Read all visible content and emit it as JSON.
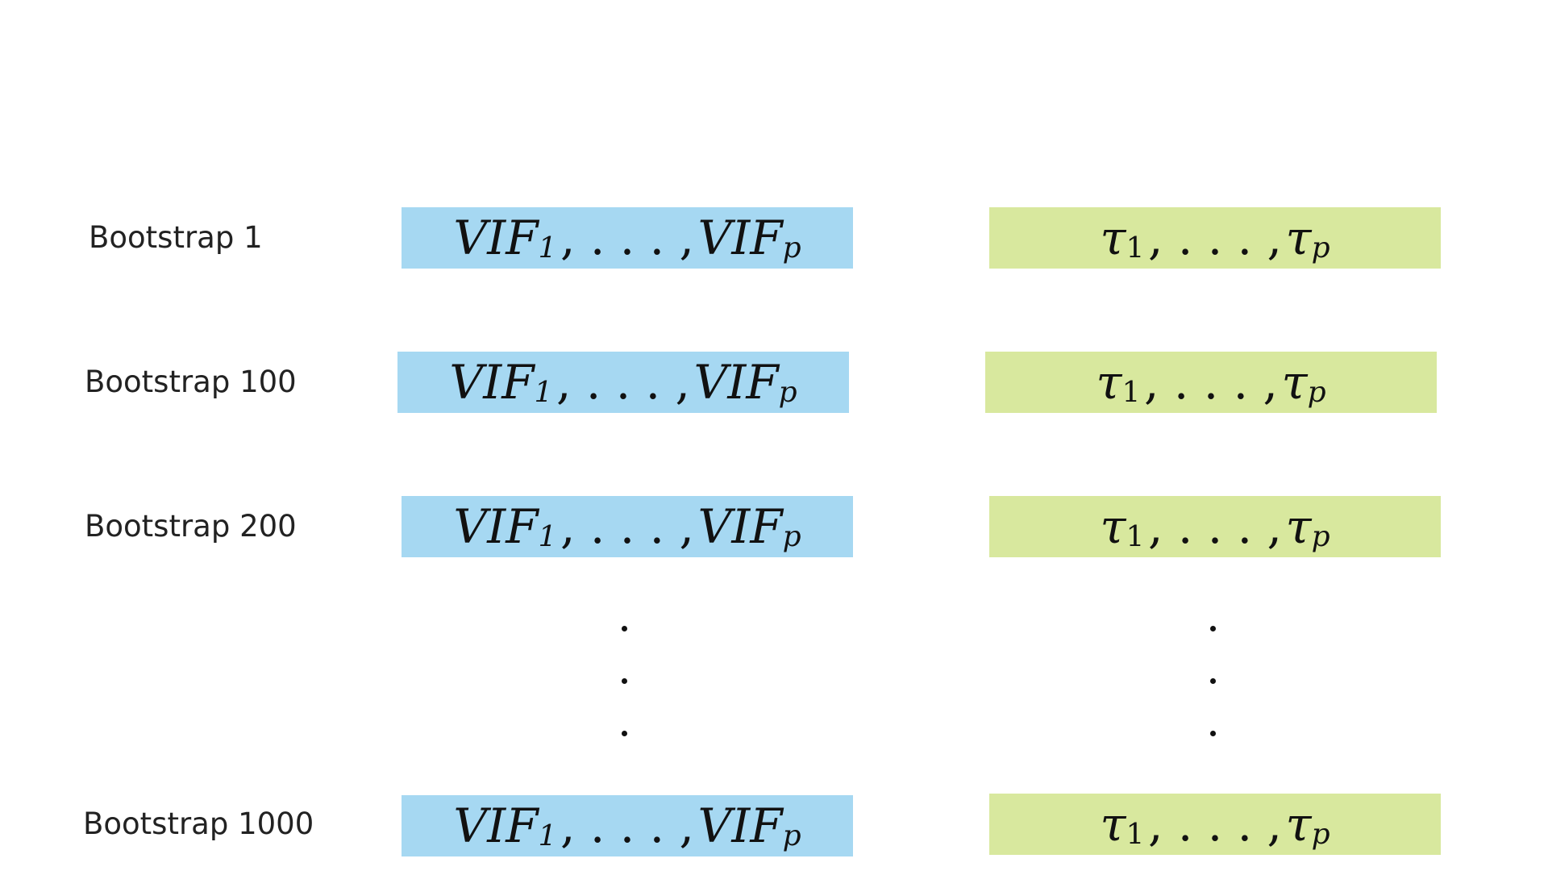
{
  "rows": [
    {
      "label": "Bootstrap 1"
    },
    {
      "label": "Bootstrap 100"
    },
    {
      "label": "Bootstrap 200"
    },
    {
      "label": "Bootstrap 1000"
    }
  ],
  "vif": {
    "base": "VIF",
    "first_sub": "1",
    "ellipsis": ", . . . ,",
    "last_sub": "p"
  },
  "tau": {
    "symbol": "τ",
    "first_sub": "1",
    "ellipsis": ", . . . ,",
    "last_sub": "p"
  },
  "colors": {
    "vif_box": "#a6d8f2",
    "tau_box": "#d8e89e",
    "text": "#222222"
  }
}
